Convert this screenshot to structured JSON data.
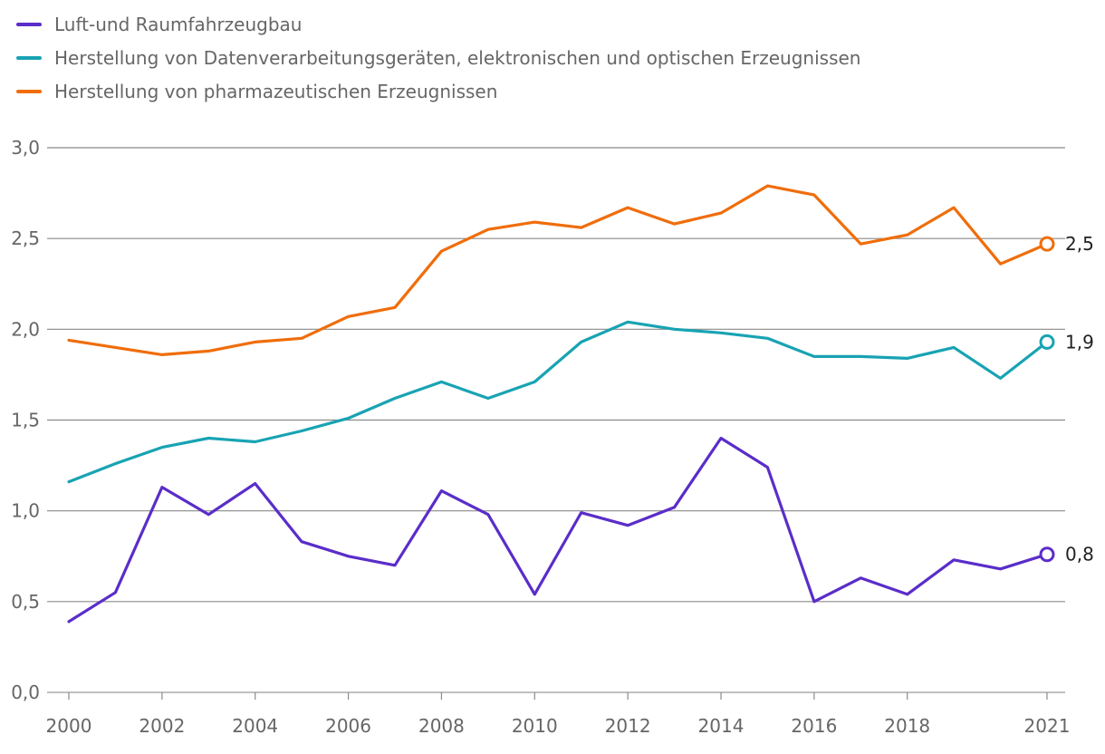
{
  "chart_data": {
    "type": "line",
    "title": "",
    "xlabel": "",
    "ylabel": "",
    "x": [
      2000,
      2001,
      2002,
      2003,
      2004,
      2005,
      2006,
      2007,
      2008,
      2009,
      2010,
      2011,
      2012,
      2013,
      2014,
      2015,
      2016,
      2017,
      2018,
      2019,
      2020,
      2021
    ],
    "x_ticks": [
      2000,
      2002,
      2004,
      2006,
      2008,
      2010,
      2012,
      2014,
      2016,
      2018,
      2021
    ],
    "x_tick_labels": [
      "2000",
      "2002",
      "2004",
      "2006",
      "2008",
      "2010",
      "2012",
      "2014",
      "2016",
      "2018",
      "2021"
    ],
    "ylim": [
      0,
      3
    ],
    "y_ticks": [
      0,
      0.5,
      1,
      1.5,
      2,
      2.5,
      3
    ],
    "y_tick_labels": [
      "0,0",
      "0,5",
      "1,0",
      "1,5",
      "2,0",
      "2,5",
      "3,0"
    ],
    "grid": true,
    "legend_position": "top-left",
    "series": [
      {
        "name": "Luft-und Raumfahrzeugbau",
        "color": "#5a2dc9",
        "values": [
          0.39,
          0.55,
          1.13,
          0.98,
          1.15,
          0.83,
          0.75,
          0.7,
          1.11,
          0.98,
          0.54,
          0.99,
          0.92,
          1.02,
          1.4,
          1.24,
          0.5,
          0.63,
          0.54,
          0.73,
          0.68,
          0.76
        ],
        "end_label": "0,8"
      },
      {
        "name": "Herstellung von Datenverarbeitungsgeräten, elektronischen und optischen Erzeugnissen",
        "color": "#18a3b3",
        "values": [
          1.16,
          1.26,
          1.35,
          1.4,
          1.38,
          1.44,
          1.51,
          1.62,
          1.71,
          1.62,
          1.71,
          1.93,
          2.04,
          2.0,
          1.98,
          1.95,
          1.85,
          1.85,
          1.84,
          1.9,
          1.73,
          1.93
        ],
        "end_label": "1,9"
      },
      {
        "name": "Herstellung von pharmazeutischen Erzeugnissen",
        "color": "#f06d0a",
        "values": [
          1.94,
          1.9,
          1.86,
          1.88,
          1.93,
          1.95,
          2.07,
          2.12,
          2.43,
          2.55,
          2.59,
          2.56,
          2.67,
          2.58,
          2.64,
          2.79,
          2.74,
          2.47,
          2.52,
          2.67,
          2.36,
          2.47
        ],
        "end_label": "2,5"
      }
    ]
  }
}
